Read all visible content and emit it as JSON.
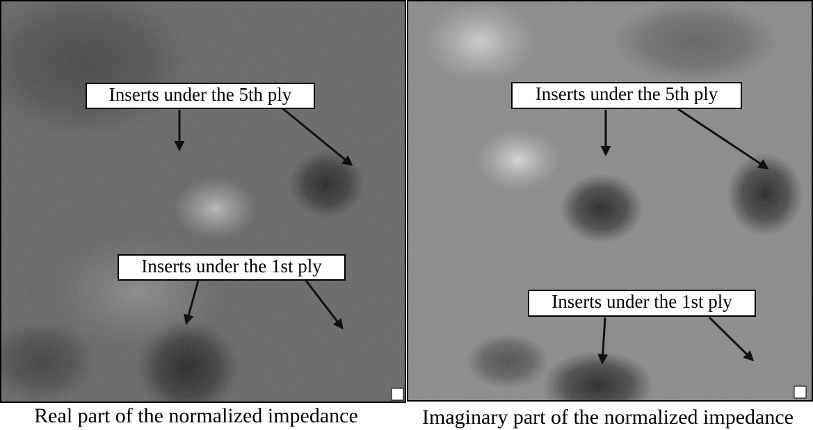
{
  "panels": [
    {
      "labels": [
        "Inserts under the 5th ply",
        "Inserts under the 1st ply"
      ],
      "caption": "Real part of the normalized impedance"
    },
    {
      "labels": [
        "Inserts under the 5th ply",
        "Inserts under the 1st ply"
      ],
      "caption": "Imaginary part of the normalized impedance"
    }
  ]
}
